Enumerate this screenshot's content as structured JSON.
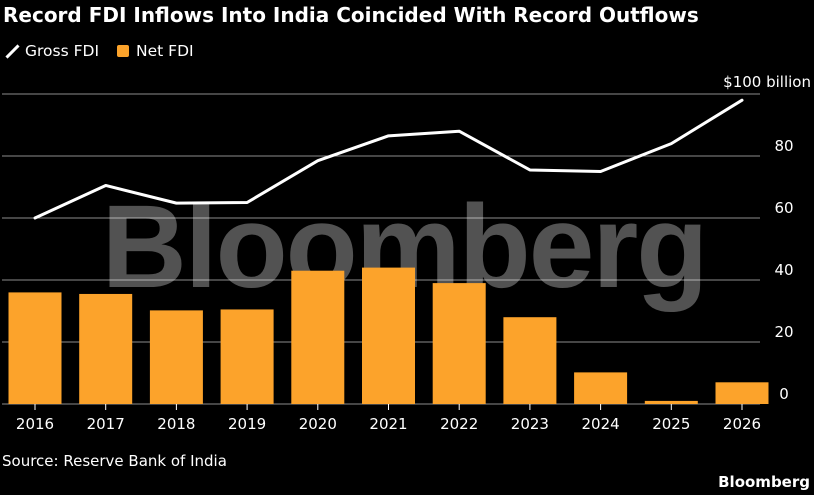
{
  "chart_data": {
    "type": "bar",
    "title": "Record FDI Inflows Into India Coincided With Record Outflows",
    "categories": [
      "2016",
      "2017",
      "2018",
      "2019",
      "2020",
      "2021",
      "2022",
      "2023",
      "2024",
      "2025",
      "2026"
    ],
    "series": [
      {
        "name": "Gross FDI",
        "type": "line",
        "color": "#ffffff",
        "values": [
          60,
          70.5,
          64.8,
          65,
          78.5,
          86.5,
          88,
          75.5,
          75,
          84,
          98
        ]
      },
      {
        "name": "Net FDI",
        "type": "bar",
        "color": "#fca32b",
        "values": [
          36,
          35.5,
          30.2,
          30.5,
          43,
          44,
          39,
          28,
          10.2,
          1,
          7
        ]
      }
    ],
    "ylim": [
      0,
      100
    ],
    "yticks": [
      {
        "value": 0,
        "label": "0"
      },
      {
        "value": 20,
        "label": "20"
      },
      {
        "value": 40,
        "label": "40"
      },
      {
        "value": 60,
        "label": "60"
      },
      {
        "value": 80,
        "label": "80"
      },
      {
        "value": 100,
        "label": "$100 billion"
      }
    ],
    "grid": true,
    "legend_position": "top-left"
  },
  "source": "Source: Reserve Bank of India",
  "brand": "Bloomberg",
  "watermark": "Bloomberg",
  "colors": {
    "background": "#000000",
    "gridline": "#8c8c8c",
    "bar": "#fca32b",
    "line": "#ffffff"
  }
}
